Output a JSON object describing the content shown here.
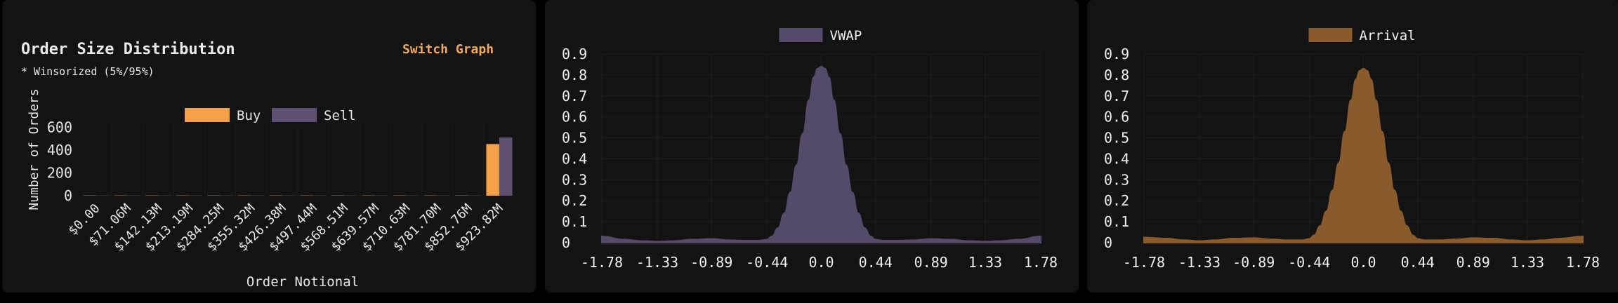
{
  "panel1": {
    "title": "Order Size Distribution",
    "subtitle": "* Winsorized (5%/95%)",
    "switch_label": "Switch Graph"
  },
  "chart_data": [
    {
      "type": "bar",
      "title": "Order Size Distribution",
      "xlabel": "Order Notional",
      "ylabel": "Number of Orders",
      "categories": [
        "$0.00",
        "$71.06M",
        "$142.13M",
        "$213.19M",
        "$284.25M",
        "$355.32M",
        "$426.38M",
        "$497.44M",
        "$568.51M",
        "$639.57M",
        "$710.63M",
        "$781.70M",
        "$852.76M",
        "$923.82M"
      ],
      "series": [
        {
          "name": "Buy",
          "color": "#f5a14a",
          "values": [
            2,
            2,
            2,
            2,
            2,
            2,
            2,
            2,
            2,
            2,
            2,
            2,
            2,
            452
          ]
        },
        {
          "name": "Sell",
          "color": "#5d5070",
          "values": [
            2,
            2,
            2,
            2,
            2,
            2,
            2,
            2,
            2,
            2,
            2,
            2,
            2,
            510
          ]
        }
      ],
      "yticks": [
        0,
        200,
        400,
        600
      ],
      "ylim": [
        0,
        620
      ],
      "legend": "top-center",
      "grid": false
    },
    {
      "type": "area",
      "series": [
        {
          "name": "VWAP",
          "color": "#564a6b"
        }
      ],
      "x": [
        -1.78,
        -1.6,
        -1.45,
        -1.33,
        -1.2,
        -1.05,
        -0.89,
        -0.75,
        -0.6,
        -0.5,
        -0.44,
        -0.4,
        -0.35,
        -0.3,
        -0.25,
        -0.2,
        -0.15,
        -0.1,
        -0.06,
        -0.03,
        0.0,
        0.03,
        0.06,
        0.1,
        0.15,
        0.2,
        0.25,
        0.3,
        0.35,
        0.4,
        0.44,
        0.5,
        0.6,
        0.75,
        0.89,
        1.05,
        1.2,
        1.33,
        1.45,
        1.6,
        1.78
      ],
      "y": [
        0.03,
        0.015,
        0.008,
        0.005,
        0.008,
        0.015,
        0.018,
        0.012,
        0.01,
        0.01,
        0.015,
        0.03,
        0.07,
        0.14,
        0.24,
        0.37,
        0.52,
        0.68,
        0.79,
        0.83,
        0.84,
        0.83,
        0.79,
        0.68,
        0.52,
        0.37,
        0.24,
        0.14,
        0.07,
        0.03,
        0.015,
        0.01,
        0.01,
        0.012,
        0.018,
        0.015,
        0.008,
        0.005,
        0.008,
        0.015,
        0.03
      ],
      "xticks": [
        -1.78,
        -1.33,
        -0.89,
        -0.44,
        0.0,
        0.44,
        0.89,
        1.33,
        1.78
      ],
      "xtick_labels": [
        "-1.78",
        "-1.33",
        "-0.89",
        "-0.44",
        "0.0",
        "0.44",
        "0.89",
        "1.33",
        "1.78"
      ],
      "yticks": [
        0,
        0.1,
        0.2,
        0.3,
        0.4,
        0.5,
        0.6,
        0.7,
        0.8,
        0.9
      ],
      "ytick_labels": [
        "0",
        "0.1",
        "0.2",
        "0.3",
        "0.4",
        "0.5",
        "0.6",
        "0.7",
        "0.8",
        "0.9"
      ],
      "xlim": [
        -1.78,
        1.78
      ],
      "ylim": [
        0,
        0.9
      ],
      "legend": "top-center",
      "grid": true
    },
    {
      "type": "area",
      "series": [
        {
          "name": "Arrival",
          "color": "#8b5a2b"
        }
      ],
      "x": [
        -1.78,
        -1.6,
        -1.45,
        -1.33,
        -1.2,
        -1.05,
        -0.89,
        -0.75,
        -0.6,
        -0.5,
        -0.44,
        -0.4,
        -0.35,
        -0.3,
        -0.25,
        -0.2,
        -0.15,
        -0.1,
        -0.06,
        -0.03,
        0.0,
        0.03,
        0.06,
        0.1,
        0.15,
        0.2,
        0.25,
        0.3,
        0.35,
        0.4,
        0.44,
        0.5,
        0.6,
        0.75,
        0.89,
        1.05,
        1.2,
        1.33,
        1.45,
        1.6,
        1.78
      ],
      "y": [
        0.025,
        0.02,
        0.012,
        0.008,
        0.012,
        0.02,
        0.022,
        0.016,
        0.012,
        0.012,
        0.018,
        0.035,
        0.08,
        0.15,
        0.25,
        0.38,
        0.53,
        0.68,
        0.78,
        0.82,
        0.83,
        0.82,
        0.78,
        0.68,
        0.53,
        0.38,
        0.25,
        0.15,
        0.08,
        0.035,
        0.018,
        0.012,
        0.012,
        0.016,
        0.022,
        0.02,
        0.012,
        0.008,
        0.012,
        0.02,
        0.03
      ],
      "xticks": [
        -1.78,
        -1.33,
        -0.89,
        -0.44,
        0.0,
        0.44,
        0.89,
        1.33,
        1.78
      ],
      "xtick_labels": [
        "-1.78",
        "-1.33",
        "-0.89",
        "-0.44",
        "0.0",
        "0.44",
        "0.89",
        "1.33",
        "1.78"
      ],
      "yticks": [
        0,
        0.1,
        0.2,
        0.3,
        0.4,
        0.5,
        0.6,
        0.7,
        0.8,
        0.9
      ],
      "ytick_labels": [
        "0",
        "0.1",
        "0.2",
        "0.3",
        "0.4",
        "0.5",
        "0.6",
        "0.7",
        "0.8",
        "0.9"
      ],
      "xlim": [
        -1.78,
        1.78
      ],
      "ylim": [
        0,
        0.9
      ],
      "legend": "top-center",
      "grid": true
    }
  ]
}
